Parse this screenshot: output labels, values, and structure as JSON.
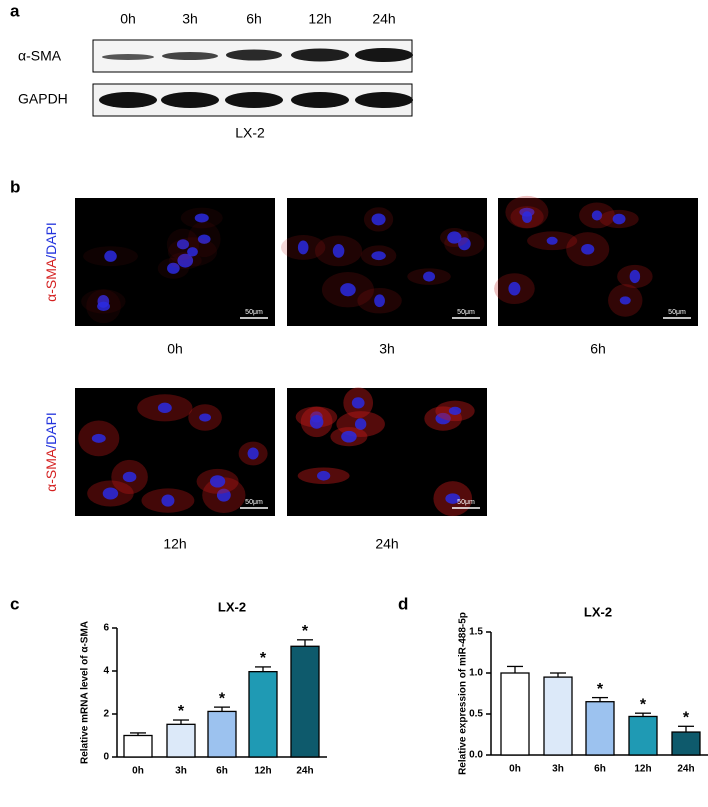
{
  "panel_labels": [
    "a",
    "b",
    "c",
    "d"
  ],
  "blot": {
    "time_points": [
      "0h",
      "3h",
      "6h",
      "12h",
      "24h"
    ],
    "rows": [
      "α-SMA",
      "GAPDH"
    ],
    "cell_line": "LX-2"
  },
  "microscopy": {
    "stain_parts": [
      "α-SMA",
      "/DAPI"
    ],
    "time_points": [
      "0h",
      "3h",
      "6h",
      "12h",
      "24h"
    ],
    "scale_bar": "50μm"
  },
  "chart_data": [
    {
      "type": "bar",
      "title": "LX-2",
      "y_label": "Relative mRNA level of α-SMA",
      "categories": [
        "0h",
        "3h",
        "6h",
        "12h",
        "24h"
      ],
      "values": [
        1.0,
        1.52,
        2.12,
        3.97,
        5.15
      ],
      "errors": [
        0.12,
        0.2,
        0.2,
        0.22,
        0.3
      ],
      "colors": [
        "#ffffff",
        "#dce9f9",
        "#9cc2ef",
        "#1f9ab4",
        "#0e5a6c"
      ],
      "significance": [
        null,
        "*",
        "*",
        "*",
        "*"
      ],
      "ylim": [
        0,
        6
      ],
      "yticks": [
        0,
        2,
        4,
        6
      ]
    },
    {
      "type": "bar",
      "title": "LX-2",
      "y_label": "Relative expression of miR-488-5p",
      "categories": [
        "0h",
        "3h",
        "6h",
        "12h",
        "24h"
      ],
      "values": [
        1.0,
        0.95,
        0.65,
        0.47,
        0.28
      ],
      "errors": [
        0.08,
        0.05,
        0.05,
        0.04,
        0.07
      ],
      "colors": [
        "#ffffff",
        "#dce9f9",
        "#9cc2ef",
        "#1f9ab4",
        "#0e5a6c"
      ],
      "significance": [
        null,
        null,
        "*",
        "*",
        "*"
      ],
      "ylim": [
        0,
        1.5
      ],
      "yticks": [
        {
          "value": 0,
          "label": "0.0"
        },
        0.5,
        {
          "value": 1,
          "label": "1.0"
        },
        1.5
      ]
    }
  ]
}
